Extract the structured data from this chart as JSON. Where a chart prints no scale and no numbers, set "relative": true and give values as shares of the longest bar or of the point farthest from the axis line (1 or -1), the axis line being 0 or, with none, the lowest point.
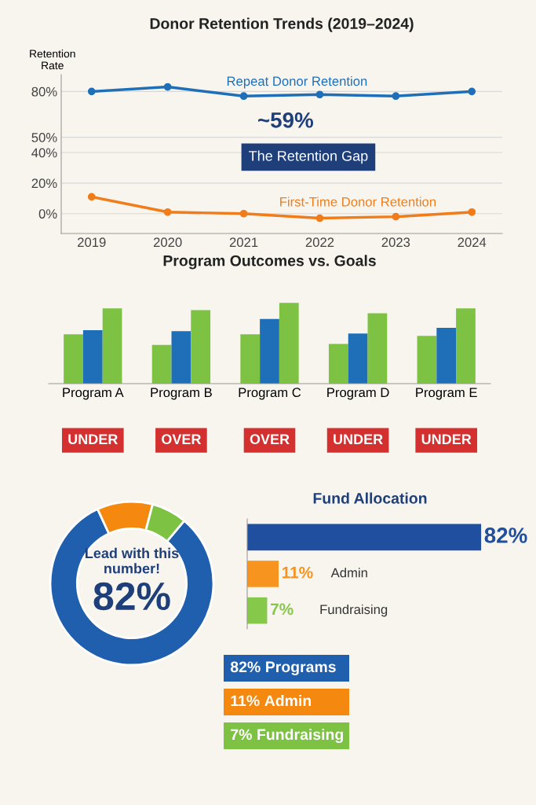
{
  "chart_data": [
    {
      "type": "line",
      "title": "Donor Retention Trends (2019–2024)",
      "ylabel": "Retention\nRate",
      "x": [
        2019,
        2020,
        2021,
        2022,
        2023,
        2024
      ],
      "series": [
        {
          "name": "Repeat Donor Retention",
          "color": "#1f6fb8",
          "values": [
            80,
            83,
            77,
            78,
            77,
            80
          ]
        },
        {
          "name": "First-Time Donor Retention",
          "color": "#f07c1a",
          "values": [
            11,
            1,
            0,
            -3,
            -2,
            1
          ]
        }
      ],
      "xlim": [
        2018.6,
        2024.4
      ],
      "ylim": [
        -13,
        91
      ],
      "xticks": [
        2019,
        2020,
        2021,
        2022,
        2023,
        2024
      ],
      "yticks": [
        {
          "value": 0,
          "label": "0%"
        },
        {
          "value": 20,
          "label": "20%"
        },
        {
          "value": 40,
          "label": "40%"
        },
        {
          "value": 50,
          "label": "50%"
        },
        {
          "value": 80,
          "label": "80%"
        }
      ],
      "grid": "y",
      "marker": "circle",
      "line_style": "solid",
      "annotations": [
        "~59%",
        "The Retention Gap"
      ]
    },
    {
      "type": "bar",
      "title": "Program Outcomes vs. Goals",
      "relative": true,
      "categories": [
        "Program A",
        "Program B",
        "Program C",
        "Program D",
        "Program E"
      ],
      "series": [
        {
          "color": "#7dc242",
          "values": [
            0.61,
            0.48,
            0.61,
            0.49,
            0.59
          ]
        },
        {
          "color": "#1f6fb8",
          "values": [
            0.66,
            0.65,
            0.8,
            0.62,
            0.69
          ]
        },
        {
          "color": "#7dc242",
          "values": [
            0.93,
            0.91,
            1,
            0.87,
            0.93
          ]
        }
      ],
      "annotations": [
        "UNDER",
        "OVER",
        "OVER",
        "UNDER",
        "UNDER"
      ]
    },
    {
      "type": "donut",
      "categories": [
        "Programs",
        "Admin",
        "Fundraising"
      ],
      "values": [
        82,
        11,
        7
      ],
      "colors": [
        "#1f5fae",
        "#f5890f",
        "#7dc242"
      ],
      "value_labels": [
        "82%",
        "11%",
        "7%"
      ],
      "legend": "bottom right",
      "annotations": [
        "Lead with this\nnumber!",
        "82%"
      ]
    },
    {
      "type": "bar",
      "orientation": "horizontal",
      "title": "Fund Allocation",
      "categories": [
        null,
        "Admin",
        "Fundraising"
      ],
      "values": [
        82,
        11,
        7
      ],
      "colors": [
        "#1f4f9e",
        "#f7931f",
        "#86c84a"
      ],
      "value_labels": [
        "82%",
        "11%",
        "7%"
      ]
    }
  ]
}
